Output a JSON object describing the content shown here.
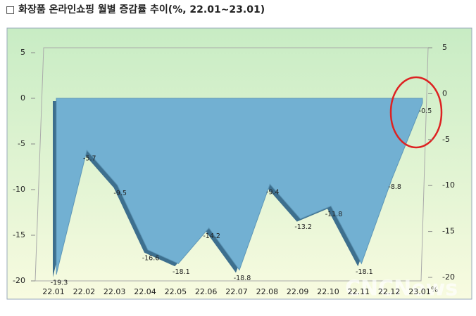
{
  "chart_data": {
    "type": "area",
    "title": "□ 화장품 온라인쇼핑 월별 증감률 추이(%, 22.01~23.01)",
    "categories": [
      "22.01",
      "22.02",
      "22.03",
      "22.04",
      "22.05",
      "22.06",
      "22.07",
      "22.08",
      "22.09",
      "22.10",
      "22.11",
      "22.12",
      "23.01"
    ],
    "values": [
      -19.3,
      -5.7,
      -9.5,
      -16.6,
      -18.1,
      -14.2,
      -18.8,
      -9.4,
      -13.2,
      -11.8,
      -18.1,
      -8.8,
      -0.5
    ],
    "color": "#72b0d2",
    "ylim": [
      -20,
      5
    ],
    "yticks": [
      5,
      0,
      -5,
      -10,
      -15,
      -20
    ],
    "y2lim": [
      -20,
      5
    ],
    "y2ticks": [
      5,
      0,
      -5,
      -10,
      -15,
      -20
    ],
    "unit_label": "%",
    "watermark": "CNCNews"
  }
}
